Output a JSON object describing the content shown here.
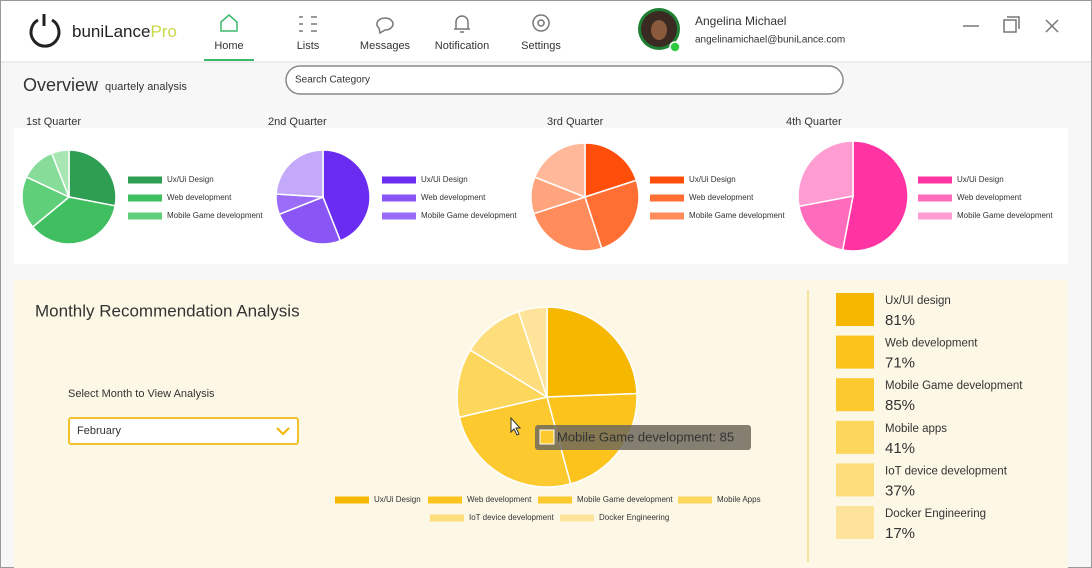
{
  "header": {
    "logo": "buniLance",
    "logo_accent": "Pro",
    "nav": [
      "Home",
      "Lists",
      "Messages",
      "Notification",
      "Settings"
    ],
    "user": {
      "name": "Angelina Michael",
      "email": "angelinamichael@buniLance.com"
    }
  },
  "overview": {
    "title": "Overview",
    "subtitle": "quartely analysis",
    "search_placeholder": "Search Category"
  },
  "quarters": [
    {
      "title": "1st Quarter",
      "chart_data": {
        "type": "pie",
        "categories": [
          "Ux/Ui Design",
          "Web development",
          "Mobile Game development",
          null,
          null
        ],
        "values": [
          28,
          36,
          18,
          12,
          6
        ],
        "colors": [
          "#2e9e52",
          "#3fbf5f",
          "#5fcf7a",
          "#86dc98",
          "#a8e6b4"
        ]
      }
    },
    {
      "title": "2nd Quarter",
      "chart_data": {
        "type": "pie",
        "categories": [
          "Ux/Ui Design",
          "Web development",
          "Mobile Game development",
          null
        ],
        "values": [
          44,
          25,
          7,
          24
        ],
        "colors": [
          "#6a2cf0",
          "#8a55f5",
          "#9a6cf7",
          "#c4a8fa"
        ]
      }
    },
    {
      "title": "3rd Quarter",
      "chart_data": {
        "type": "pie",
        "categories": [
          "Ux/Ui Design",
          "Web development",
          "Mobile Game development",
          null,
          null
        ],
        "values": [
          20,
          25,
          25,
          11,
          19
        ],
        "colors": [
          "#ff4d0a",
          "#ff6f33",
          "#ff8c5a",
          "#ffa47c",
          "#ffb899"
        ]
      }
    },
    {
      "title": "4th Quarter",
      "chart_data": {
        "type": "pie",
        "categories": [
          "Ux/Ui Design",
          "Web development",
          "Mobile Game development"
        ],
        "values": [
          53,
          19,
          28
        ],
        "colors": [
          "#ff33a1",
          "#ff6cbc",
          "#ff9cd2"
        ]
      }
    }
  ],
  "monthly": {
    "title": "Monthly Recommendation Analysis",
    "select_label": "Select Month to View Analysis",
    "selected_month": "February",
    "tooltip": "Mobile Game development: 85",
    "summary_labels": [
      "Ux/UI design",
      "Web development",
      "Mobile Game development",
      "Mobile apps",
      "IoT device development",
      "Docker Engineering"
    ],
    "chart_data": {
      "type": "pie",
      "categories": [
        "Ux/Ui Design",
        "Web development",
        "Mobile Game development",
        "Mobile Apps",
        "IoT device development",
        "Docker Engineering"
      ],
      "values": [
        81,
        71,
        85,
        41,
        37,
        17
      ],
      "value_labels": [
        "81%",
        "71%",
        "85%",
        "41%",
        "37%",
        "17%"
      ],
      "colors": [
        "#f5b700",
        "#fbc31c",
        "#fcca2f",
        "#fdd65c",
        "#fedd7c",
        "#fee39a"
      ]
    }
  }
}
